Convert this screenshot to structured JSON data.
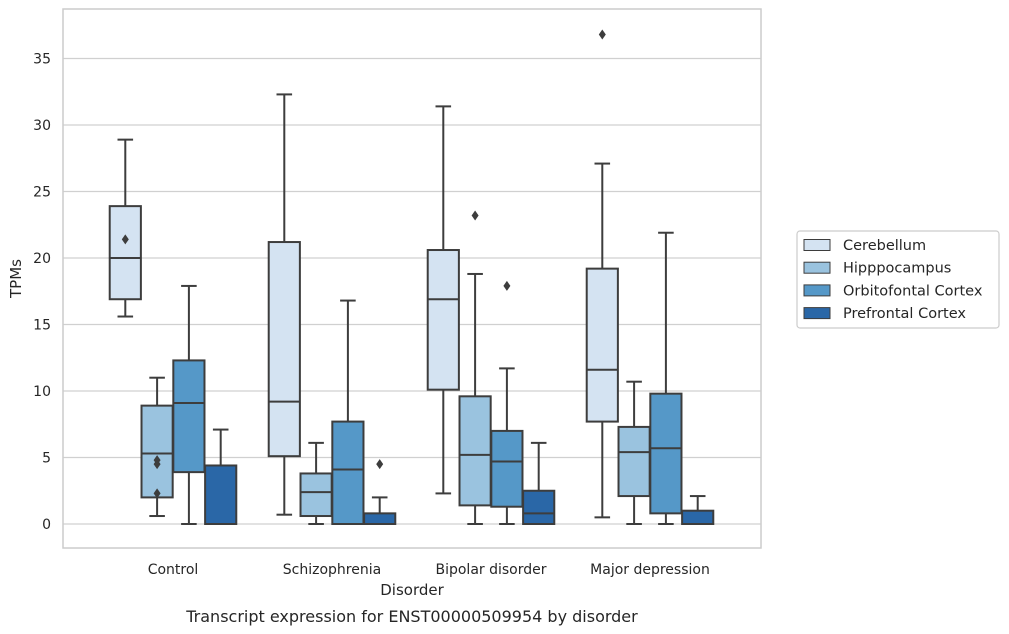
{
  "caption": "Transcript expression for ENST00000509954 by disorder",
  "chart_data": {
    "type": "box",
    "xlabel": "Disorder",
    "ylabel": "TPMs",
    "ylim": [
      -1.8,
      38.2
    ],
    "yticks": [
      0,
      5,
      10,
      15,
      20,
      25,
      30,
      35
    ],
    "grid": true,
    "legend_position": "right",
    "categories": [
      "Control",
      "Schizophrenia",
      "Bipolar disorder",
      "Major depression"
    ],
    "series": [
      {
        "name": "Cerebellum",
        "color": "#d4e3f2",
        "boxes": [
          {
            "whisker_low": 15.6,
            "q1": 16.9,
            "median": 20.0,
            "q3": 23.9,
            "whisker_high": 28.9,
            "outliers": [
              21.4
            ]
          },
          {
            "whisker_low": 0.7,
            "q1": 5.1,
            "median": 9.2,
            "q3": 21.2,
            "whisker_high": 32.3,
            "outliers": []
          },
          {
            "whisker_low": 2.3,
            "q1": 10.1,
            "median": 16.9,
            "q3": 20.6,
            "whisker_high": 31.4,
            "outliers": []
          },
          {
            "whisker_low": 0.5,
            "q1": 7.7,
            "median": 11.6,
            "q3": 19.2,
            "whisker_high": 27.1,
            "outliers": [
              36.8
            ]
          }
        ]
      },
      {
        "name": "Hipppocampus",
        "color": "#9ac3df",
        "boxes": [
          {
            "whisker_low": 0.6,
            "q1": 2.0,
            "median": 5.3,
            "q3": 8.9,
            "whisker_high": 11.0,
            "outliers": [
              2.3,
              4.5,
              4.8
            ]
          },
          {
            "whisker_low": 0.0,
            "q1": 0.6,
            "median": 2.4,
            "q3": 3.8,
            "whisker_high": 6.1,
            "outliers": []
          },
          {
            "whisker_low": 0.0,
            "q1": 1.4,
            "median": 5.2,
            "q3": 9.6,
            "whisker_high": 18.8,
            "outliers": [
              23.2
            ]
          },
          {
            "whisker_low": 0.0,
            "q1": 2.1,
            "median": 5.4,
            "q3": 7.3,
            "whisker_high": 10.7,
            "outliers": []
          }
        ]
      },
      {
        "name": "Orbitofontal Cortex",
        "color": "#5598c8",
        "boxes": [
          {
            "whisker_low": 0.0,
            "q1": 3.9,
            "median": 9.1,
            "q3": 12.3,
            "whisker_high": 17.9,
            "outliers": []
          },
          {
            "whisker_low": 0.0,
            "q1": 0.0,
            "median": 4.1,
            "q3": 7.7,
            "whisker_high": 16.8,
            "outliers": []
          },
          {
            "whisker_low": 0.0,
            "q1": 1.3,
            "median": 4.7,
            "q3": 7.0,
            "whisker_high": 11.7,
            "outliers": [
              17.9
            ]
          },
          {
            "whisker_low": 0.0,
            "q1": 0.8,
            "median": 5.7,
            "q3": 9.8,
            "whisker_high": 21.9,
            "outliers": []
          }
        ]
      },
      {
        "name": "Prefrontal Cortex",
        "color": "#2a67a7",
        "boxes": [
          {
            "whisker_low": 0.0,
            "q1": 0.0,
            "median": 0.0,
            "q3": 4.4,
            "whisker_high": 7.1,
            "outliers": []
          },
          {
            "whisker_low": 0.0,
            "q1": 0.0,
            "median": 0.0,
            "q3": 0.8,
            "whisker_high": 2.0,
            "outliers": [
              4.5
            ]
          },
          {
            "whisker_low": 0.0,
            "q1": 0.0,
            "median": 0.8,
            "q3": 2.5,
            "whisker_high": 6.1,
            "outliers": []
          },
          {
            "whisker_low": 0.0,
            "q1": 0.0,
            "median": 0.0,
            "q3": 1.0,
            "whisker_high": 2.1,
            "outliers": []
          }
        ]
      }
    ]
  }
}
